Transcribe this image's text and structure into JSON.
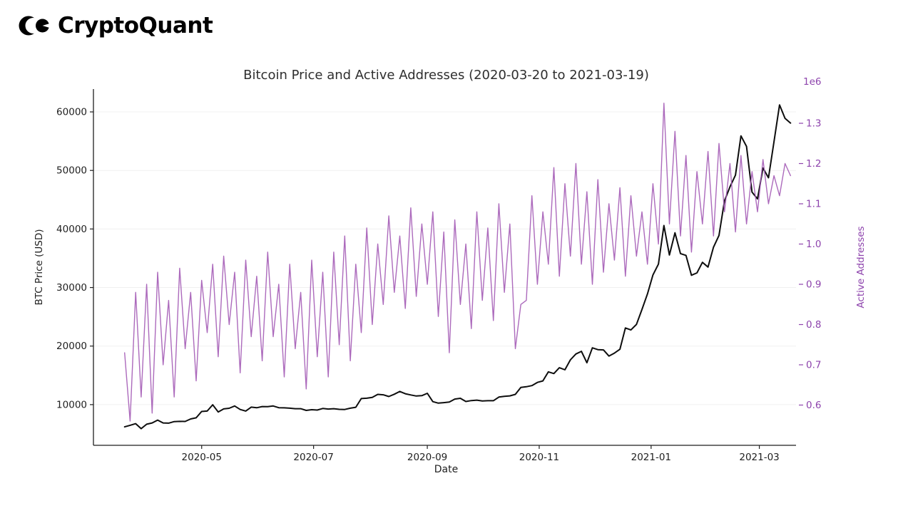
{
  "brand": {
    "name": "CryptoQuant"
  },
  "chart_data": {
    "type": "line",
    "title": "Bitcoin Price and Active Addresses (2020-03-20 to 2021-03-19)",
    "xlabel": "Date",
    "ylabel_left": "BTC Price (USD)",
    "ylabel_right": "Active Addresses",
    "right_axis_multiplier_label": "1e6",
    "start_date": "2020-03-20",
    "end_date": "2021-03-19",
    "sample_step_days": 3,
    "background": "#ffffff",
    "grid": true,
    "grid_color": "#f0f0f0",
    "spine_color": "#1f1f1f",
    "tick_label_color": "#1f1f1f",
    "right_axis_color": "#8e44ad",
    "legend": "none",
    "xlim_days": [
      -17,
      366
    ],
    "ylim_left": [
      3050,
      63900
    ],
    "ylim_right": [
      0.5,
      1.385
    ],
    "xticks": [
      {
        "label": "2020-05",
        "day": 42
      },
      {
        "label": "2020-07",
        "day": 103
      },
      {
        "label": "2020-09",
        "day": 165
      },
      {
        "label": "2020-11",
        "day": 226
      },
      {
        "label": "2021-01",
        "day": 287
      },
      {
        "label": "2021-03",
        "day": 346
      }
    ],
    "yticks_left": [
      10000,
      20000,
      30000,
      40000,
      50000,
      60000
    ],
    "yticks_right": [
      0.6,
      0.7,
      0.8,
      0.9,
      1.0,
      1.1,
      1.2,
      1.3
    ],
    "series": [
      {
        "name": "BTC Price (USD)",
        "axis": "left",
        "color": "#0d0d0d",
        "width": 2,
        "opacity": 1,
        "values": [
          6200,
          6470,
          6750,
          5900,
          6650,
          6870,
          7360,
          6870,
          6840,
          7100,
          7140,
          7130,
          7550,
          7750,
          8830,
          8900,
          9980,
          8750,
          9270,
          9380,
          9770,
          9170,
          8900,
          9570,
          9460,
          9670,
          9660,
          9770,
          9470,
          9450,
          9390,
          9310,
          9310,
          9010,
          9140,
          9070,
          9340,
          9240,
          9300,
          9190,
          9170,
          9390,
          9550,
          11030,
          11100,
          11240,
          11750,
          11680,
          11390,
          11780,
          12250,
          11860,
          11650,
          11470,
          11530,
          11930,
          10510,
          10250,
          10340,
          10440,
          10950,
          11080,
          10530,
          10690,
          10770,
          10620,
          10670,
          10670,
          11290,
          11420,
          11500,
          11750,
          12950,
          13050,
          13250,
          13800,
          14050,
          15600,
          15300,
          16300,
          15950,
          17650,
          18650,
          19100,
          17150,
          19700,
          19400,
          19350,
          18300,
          18800,
          19450,
          23100,
          22750,
          23700,
          26250,
          28900,
          32150,
          34000,
          40600,
          35550,
          39350,
          35800,
          35500,
          32100,
          32500,
          34300,
          33500,
          36900,
          38900,
          44800,
          47200,
          49200,
          55900,
          54100,
          46300,
          45150,
          50400,
          48750,
          54900,
          61200,
          58900,
          58100
        ]
      },
      {
        "name": "Active Addresses (millions)",
        "axis": "right",
        "color": "#a35ab5",
        "width": 1.4,
        "opacity": 0.9,
        "values": [
          0.73,
          0.56,
          0.88,
          0.62,
          0.9,
          0.58,
          0.93,
          0.7,
          0.86,
          0.62,
          0.94,
          0.74,
          0.88,
          0.66,
          0.91,
          0.78,
          0.95,
          0.72,
          0.97,
          0.8,
          0.93,
          0.68,
          0.96,
          0.77,
          0.92,
          0.71,
          0.98,
          0.77,
          0.9,
          0.67,
          0.95,
          0.74,
          0.88,
          0.64,
          0.96,
          0.72,
          0.93,
          0.67,
          0.98,
          0.75,
          1.02,
          0.71,
          0.95,
          0.78,
          1.04,
          0.8,
          1.0,
          0.85,
          1.07,
          0.88,
          1.02,
          0.84,
          1.09,
          0.87,
          1.05,
          0.9,
          1.08,
          0.82,
          1.03,
          0.73,
          1.06,
          0.85,
          1.0,
          0.79,
          1.08,
          0.86,
          1.04,
          0.81,
          1.1,
          0.88,
          1.05,
          0.74,
          0.85,
          0.86,
          1.12,
          0.9,
          1.08,
          0.95,
          1.19,
          0.92,
          1.15,
          0.97,
          1.2,
          0.95,
          1.13,
          0.9,
          1.16,
          0.93,
          1.1,
          0.96,
          1.14,
          0.92,
          1.12,
          0.97,
          1.08,
          0.95,
          1.15,
          1.0,
          1.35,
          1.05,
          1.28,
          1.02,
          1.22,
          0.98,
          1.18,
          1.05,
          1.23,
          1.02,
          1.25,
          1.08,
          1.2,
          1.03,
          1.22,
          1.05,
          1.18,
          1.08,
          1.21,
          1.1,
          1.17,
          1.12,
          1.2,
          1.17
        ]
      }
    ]
  }
}
